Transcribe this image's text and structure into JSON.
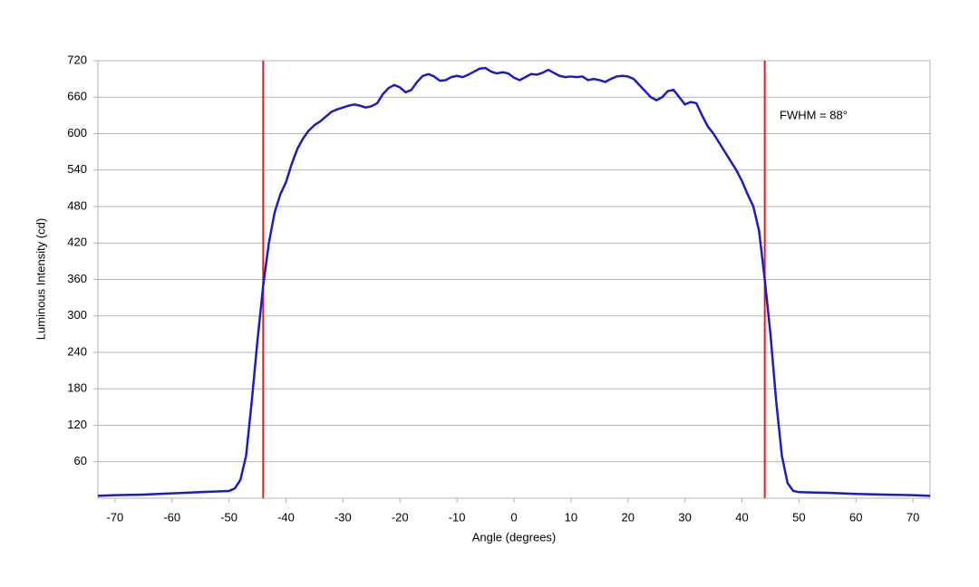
{
  "chart_data": {
    "type": "line",
    "xlabel": "Angle (degrees)",
    "ylabel": "Luminous Intensity (cd)",
    "annotation": "FWHM = 88°",
    "xlim": [
      -73,
      73
    ],
    "xticks": [
      -70,
      -60,
      -50,
      -40,
      -30,
      -20,
      -10,
      0,
      10,
      20,
      30,
      40,
      50,
      60,
      70
    ],
    "ylim": [
      0,
      720
    ],
    "yticks": [
      60,
      120,
      180,
      240,
      300,
      360,
      420,
      480,
      540,
      600,
      660,
      720
    ],
    "grid": true,
    "vlines": [
      -44,
      44
    ],
    "vline_color": "#e02020",
    "x": [
      -73,
      -70,
      -65,
      -60,
      -55,
      -50,
      -49,
      -48,
      -47,
      -46,
      -45,
      -44,
      -43,
      -42,
      -41,
      -40,
      -39,
      -38,
      -37,
      -36,
      -35,
      -34,
      -33,
      -32,
      -31,
      -30,
      -29,
      -28,
      -27,
      -26,
      -25,
      -24,
      -23,
      -22,
      -21,
      -20,
      -19,
      -18,
      -17,
      -16,
      -15,
      -14,
      -13,
      -12,
      -11,
      -10,
      -9,
      -8,
      -7,
      -6,
      -5,
      -4,
      -3,
      -2,
      -1,
      0,
      1,
      2,
      3,
      4,
      5,
      6,
      7,
      8,
      9,
      10,
      11,
      12,
      13,
      14,
      15,
      16,
      17,
      18,
      19,
      20,
      21,
      22,
      23,
      24,
      25,
      26,
      27,
      28,
      29,
      30,
      31,
      32,
      33,
      34,
      35,
      36,
      37,
      38,
      39,
      40,
      41,
      42,
      43,
      44,
      45,
      46,
      47,
      48,
      49,
      50,
      55,
      60,
      65,
      70,
      73
    ],
    "series": [
      {
        "name": "Luminous Intensity",
        "color": "#1c1cc4",
        "values": [
          4,
          5,
          6,
          8,
          10,
          12,
          16,
          30,
          70,
          160,
          260,
          350,
          420,
          470,
          500,
          520,
          550,
          575,
          592,
          605,
          614,
          620,
          628,
          636,
          640,
          643,
          646,
          648,
          646,
          643,
          645,
          650,
          665,
          675,
          680,
          676,
          668,
          672,
          685,
          695,
          698,
          694,
          687,
          688,
          693,
          695,
          693,
          697,
          702,
          707,
          708,
          702,
          699,
          701,
          699,
          692,
          688,
          693,
          698,
          697,
          700,
          705,
          700,
          695,
          693,
          694,
          693,
          694,
          688,
          690,
          688,
          685,
          690,
          694,
          695,
          694,
          690,
          680,
          670,
          660,
          655,
          660,
          670,
          672,
          660,
          648,
          652,
          650,
          630,
          612,
          600,
          585,
          570,
          555,
          540,
          522,
          500,
          480,
          440,
          360,
          270,
          160,
          70,
          25,
          12,
          10,
          9,
          7,
          6,
          5,
          4
        ]
      }
    ]
  }
}
